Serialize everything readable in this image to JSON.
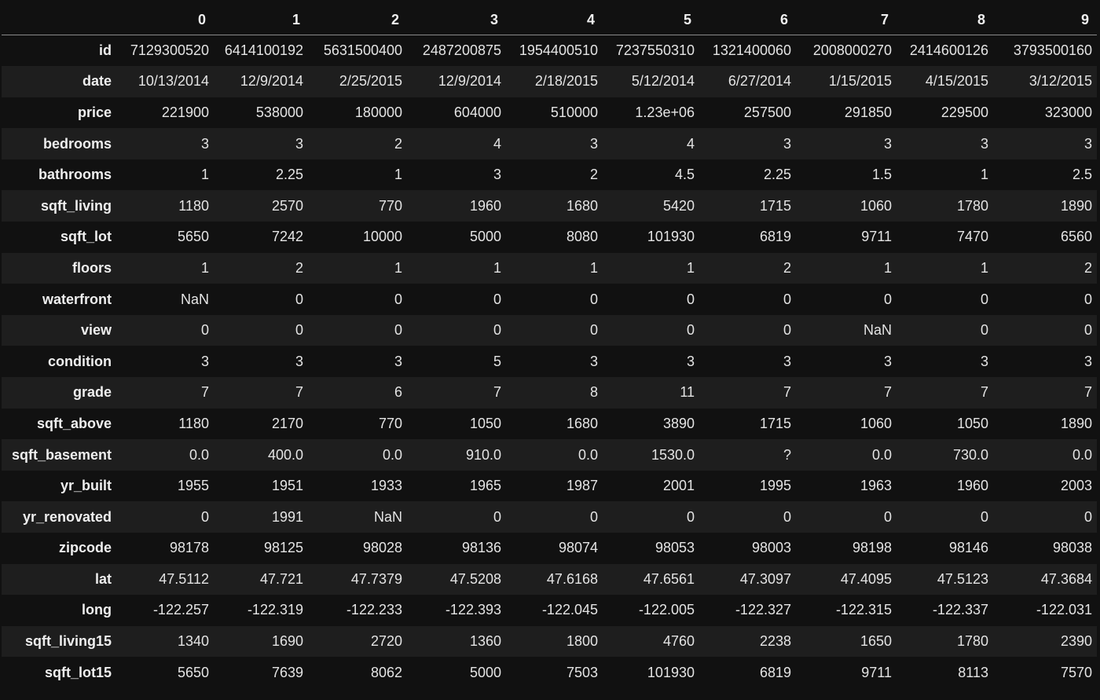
{
  "table": {
    "columns": [
      "0",
      "1",
      "2",
      "3",
      "4",
      "5",
      "6",
      "7",
      "8",
      "9"
    ],
    "rows": [
      {
        "label": "id",
        "cells": [
          "7129300520",
          "6414100192",
          "5631500400",
          "2487200875",
          "1954400510",
          "7237550310",
          "1321400060",
          "2008000270",
          "2414600126",
          "3793500160"
        ]
      },
      {
        "label": "date",
        "cells": [
          "10/13/2014",
          "12/9/2014",
          "2/25/2015",
          "12/9/2014",
          "2/18/2015",
          "5/12/2014",
          "6/27/2014",
          "1/15/2015",
          "4/15/2015",
          "3/12/2015"
        ]
      },
      {
        "label": "price",
        "cells": [
          "221900",
          "538000",
          "180000",
          "604000",
          "510000",
          "1.23e+06",
          "257500",
          "291850",
          "229500",
          "323000"
        ]
      },
      {
        "label": "bedrooms",
        "cells": [
          "3",
          "3",
          "2",
          "4",
          "3",
          "4",
          "3",
          "3",
          "3",
          "3"
        ]
      },
      {
        "label": "bathrooms",
        "cells": [
          "1",
          "2.25",
          "1",
          "3",
          "2",
          "4.5",
          "2.25",
          "1.5",
          "1",
          "2.5"
        ]
      },
      {
        "label": "sqft_living",
        "cells": [
          "1180",
          "2570",
          "770",
          "1960",
          "1680",
          "5420",
          "1715",
          "1060",
          "1780",
          "1890"
        ]
      },
      {
        "label": "sqft_lot",
        "cells": [
          "5650",
          "7242",
          "10000",
          "5000",
          "8080",
          "101930",
          "6819",
          "9711",
          "7470",
          "6560"
        ]
      },
      {
        "label": "floors",
        "cells": [
          "1",
          "2",
          "1",
          "1",
          "1",
          "1",
          "2",
          "1",
          "1",
          "2"
        ]
      },
      {
        "label": "waterfront",
        "cells": [
          "NaN",
          "0",
          "0",
          "0",
          "0",
          "0",
          "0",
          "0",
          "0",
          "0"
        ]
      },
      {
        "label": "view",
        "cells": [
          "0",
          "0",
          "0",
          "0",
          "0",
          "0",
          "0",
          "NaN",
          "0",
          "0"
        ]
      },
      {
        "label": "condition",
        "cells": [
          "3",
          "3",
          "3",
          "5",
          "3",
          "3",
          "3",
          "3",
          "3",
          "3"
        ]
      },
      {
        "label": "grade",
        "cells": [
          "7",
          "7",
          "6",
          "7",
          "8",
          "11",
          "7",
          "7",
          "7",
          "7"
        ]
      },
      {
        "label": "sqft_above",
        "cells": [
          "1180",
          "2170",
          "770",
          "1050",
          "1680",
          "3890",
          "1715",
          "1060",
          "1050",
          "1890"
        ]
      },
      {
        "label": "sqft_basement",
        "cells": [
          "0.0",
          "400.0",
          "0.0",
          "910.0",
          "0.0",
          "1530.0",
          "?",
          "0.0",
          "730.0",
          "0.0"
        ]
      },
      {
        "label": "yr_built",
        "cells": [
          "1955",
          "1951",
          "1933",
          "1965",
          "1987",
          "2001",
          "1995",
          "1963",
          "1960",
          "2003"
        ]
      },
      {
        "label": "yr_renovated",
        "cells": [
          "0",
          "1991",
          "NaN",
          "0",
          "0",
          "0",
          "0",
          "0",
          "0",
          "0"
        ]
      },
      {
        "label": "zipcode",
        "cells": [
          "98178",
          "98125",
          "98028",
          "98136",
          "98074",
          "98053",
          "98003",
          "98198",
          "98146",
          "98038"
        ]
      },
      {
        "label": "lat",
        "cells": [
          "47.5112",
          "47.721",
          "47.7379",
          "47.5208",
          "47.6168",
          "47.6561",
          "47.3097",
          "47.4095",
          "47.5123",
          "47.3684"
        ]
      },
      {
        "label": "long",
        "cells": [
          "-122.257",
          "-122.319",
          "-122.233",
          "-122.393",
          "-122.045",
          "-122.005",
          "-122.327",
          "-122.315",
          "-122.337",
          "-122.031"
        ]
      },
      {
        "label": "sqft_living15",
        "cells": [
          "1340",
          "1690",
          "2720",
          "1360",
          "1800",
          "4760",
          "2238",
          "1650",
          "1780",
          "2390"
        ]
      },
      {
        "label": "sqft_lot15",
        "cells": [
          "5650",
          "7639",
          "8062",
          "5000",
          "7503",
          "101930",
          "6819",
          "9711",
          "8113",
          "7570"
        ]
      }
    ]
  },
  "colors": {
    "background": "#111111",
    "stripe": "#1e1e1e",
    "text": "#e8e8e8",
    "header_rule": "#8a8a8a"
  }
}
